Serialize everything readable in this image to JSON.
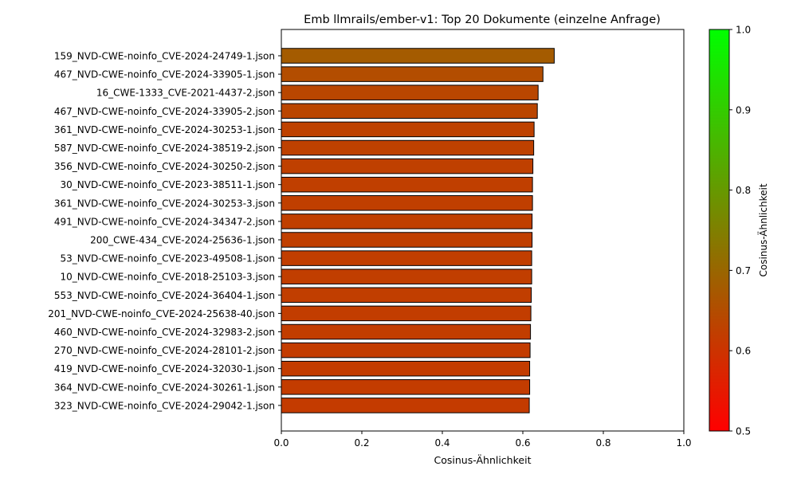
{
  "chart_data": {
    "type": "bar",
    "orientation": "horizontal",
    "title": "Emb llmrails/ember-v1: Top 20 Dokumente (einzelne Anfrage)",
    "xlabel": "Cosinus-Ähnlichkeit",
    "ylabel": "",
    "xlim": [
      0.0,
      1.0
    ],
    "x_ticks": [
      "0.0",
      "0.2",
      "0.4",
      "0.6",
      "0.8",
      "1.0"
    ],
    "categories": [
      "159_NVD-CWE-noinfo_CVE-2024-24749-1.json",
      "467_NVD-CWE-noinfo_CVE-2024-33905-1.json",
      "16_CWE-1333_CVE-2021-4437-2.json",
      "467_NVD-CWE-noinfo_CVE-2024-33905-2.json",
      "361_NVD-CWE-noinfo_CVE-2024-30253-1.json",
      "587_NVD-CWE-noinfo_CVE-2024-38519-2.json",
      "356_NVD-CWE-noinfo_CVE-2024-30250-2.json",
      "30_NVD-CWE-noinfo_CVE-2023-38511-1.json",
      "361_NVD-CWE-noinfo_CVE-2024-30253-3.json",
      "491_NVD-CWE-noinfo_CVE-2024-34347-2.json",
      "200_CWE-434_CVE-2024-25636-1.json",
      "53_NVD-CWE-noinfo_CVE-2023-49508-1.json",
      "10_NVD-CWE-noinfo_CVE-2018-25103-3.json",
      "553_NVD-CWE-noinfo_CVE-2024-36404-1.json",
      "201_NVD-CWE-noinfo_CVE-2024-25638-40.json",
      "460_NVD-CWE-noinfo_CVE-2024-32983-2.json",
      "270_NVD-CWE-noinfo_CVE-2024-28101-2.json",
      "419_NVD-CWE-noinfo_CVE-2024-32030-1.json",
      "364_NVD-CWE-noinfo_CVE-2024-30261-1.json",
      "323_NVD-CWE-noinfo_CVE-2024-29042-1.json"
    ],
    "values": [
      0.678,
      0.65,
      0.638,
      0.636,
      0.628,
      0.627,
      0.625,
      0.624,
      0.624,
      0.623,
      0.623,
      0.622,
      0.622,
      0.621,
      0.62,
      0.619,
      0.618,
      0.617,
      0.617,
      0.616
    ],
    "colorbar": {
      "label": "Cosinus-Ähnlichkeit",
      "range": [
        0.5,
        1.0
      ],
      "ticks": [
        "0.5",
        "0.6",
        "0.7",
        "0.8",
        "0.9",
        "1.0"
      ],
      "color_low": "#ff0000",
      "color_high": "#00ff00"
    },
    "bar_edge_color": "#000000",
    "grid": false,
    "legend": "none"
  }
}
